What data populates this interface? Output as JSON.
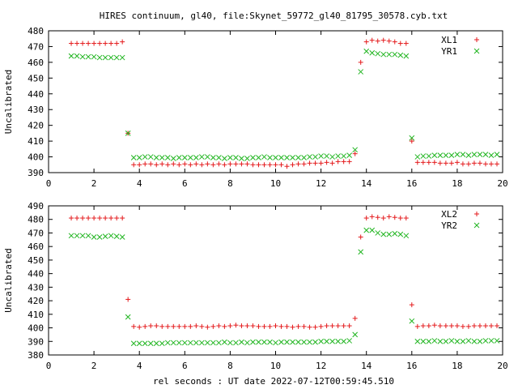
{
  "title": "HIRES continuum, gl40, file:Skynet_59772_gl40_81795_30578.cyb.txt",
  "xlabel": "rel seconds : UT date 2022-07-12T00:59:45.510",
  "colors": {
    "red": "#e41a1c",
    "green": "#21b521"
  },
  "chart_data": [
    {
      "type": "scatter",
      "ylabel": "Uncalibrated",
      "xlim": [
        0,
        20
      ],
      "ylim": [
        390,
        480
      ],
      "xticks": [
        "0",
        "2",
        "4",
        "6",
        "8",
        "10",
        "12",
        "14",
        "16",
        "18",
        "20"
      ],
      "yticks": [
        "390",
        "400",
        "410",
        "420",
        "430",
        "440",
        "450",
        "460",
        "470",
        "480"
      ],
      "legend_position": "top-right",
      "grid": false,
      "series": [
        {
          "name": "XL1",
          "marker": "plus",
          "color": "#e41a1c",
          "x": [
            1.0,
            1.25,
            1.5,
            1.75,
            2.0,
            2.25,
            2.5,
            2.75,
            3.0,
            3.25,
            3.5,
            3.75,
            4.0,
            4.25,
            4.5,
            4.75,
            5.0,
            5.25,
            5.5,
            5.75,
            6.0,
            6.25,
            6.5,
            6.75,
            7.0,
            7.25,
            7.5,
            7.75,
            8.0,
            8.25,
            8.5,
            8.75,
            9.0,
            9.25,
            9.5,
            9.75,
            10.0,
            10.25,
            10.5,
            10.75,
            11.0,
            11.25,
            11.5,
            11.75,
            12.0,
            12.25,
            12.5,
            12.75,
            13.0,
            13.25,
            13.5,
            13.75,
            14.0,
            14.25,
            14.5,
            14.75,
            15.0,
            15.25,
            15.5,
            15.75,
            16.0,
            16.25,
            16.5,
            16.75,
            17.0,
            17.25,
            17.5,
            17.75,
            18.0,
            18.25,
            18.5,
            18.75,
            19.0,
            19.25,
            19.5,
            19.75
          ],
          "y": [
            472,
            472,
            472,
            472,
            472,
            472,
            472,
            472,
            472,
            473,
            415,
            395,
            395,
            395.5,
            395.5,
            395,
            395.5,
            395,
            395.5,
            395,
            395.5,
            395,
            395.5,
            395,
            395.5,
            395,
            395.5,
            395,
            395.5,
            395.5,
            395.5,
            395.5,
            395,
            395,
            395,
            395,
            395,
            395,
            394,
            395,
            395.5,
            395.5,
            396,
            396,
            396,
            396.5,
            396,
            397,
            397,
            397,
            402,
            460,
            473,
            474,
            473.5,
            474,
            473.5,
            473,
            472,
            472,
            410,
            396.5,
            396.5,
            396.5,
            396.5,
            396,
            396,
            396,
            396.5,
            395.5,
            395.5,
            396,
            396,
            395.5,
            395.5,
            395.5
          ]
        },
        {
          "name": "YR1",
          "marker": "cross",
          "color": "#21b521",
          "x": [
            1.0,
            1.25,
            1.5,
            1.75,
            2.0,
            2.25,
            2.5,
            2.75,
            3.0,
            3.25,
            3.5,
            3.75,
            4.0,
            4.25,
            4.5,
            4.75,
            5.0,
            5.25,
            5.5,
            5.75,
            6.0,
            6.25,
            6.5,
            6.75,
            7.0,
            7.25,
            7.5,
            7.75,
            8.0,
            8.25,
            8.5,
            8.75,
            9.0,
            9.25,
            9.5,
            9.75,
            10.0,
            10.25,
            10.5,
            10.75,
            11.0,
            11.25,
            11.5,
            11.75,
            12.0,
            12.25,
            12.5,
            12.75,
            13.0,
            13.25,
            13.5,
            13.75,
            14.0,
            14.25,
            14.5,
            14.75,
            15.0,
            15.25,
            15.5,
            15.75,
            16.0,
            16.25,
            16.5,
            16.75,
            17.0,
            17.25,
            17.5,
            17.75,
            18.0,
            18.25,
            18.5,
            18.75,
            19.0,
            19.25,
            19.5,
            19.75
          ],
          "y": [
            464,
            464,
            463.5,
            463.5,
            463.5,
            463,
            463,
            463,
            463,
            463,
            415,
            399.5,
            399.5,
            400,
            400,
            399.5,
            399.5,
            399.5,
            399,
            399.5,
            399.5,
            399.5,
            399.5,
            400,
            400,
            399.5,
            399.5,
            399,
            399.5,
            399.5,
            399,
            399,
            399.5,
            399.5,
            400,
            399.5,
            399.5,
            399.5,
            399.5,
            399.5,
            399.5,
            399.5,
            400,
            400,
            400.5,
            400.5,
            400,
            400.5,
            400.5,
            401,
            404.5,
            454,
            467,
            466,
            465.5,
            465,
            465,
            465,
            464.5,
            464,
            412,
            400,
            400.5,
            400.5,
            401,
            401,
            401,
            401,
            401.5,
            401.5,
            401,
            401.5,
            401.5,
            401.5,
            401,
            401.5
          ]
        }
      ]
    },
    {
      "type": "scatter",
      "ylabel": "Uncalibrated",
      "xlim": [
        0,
        20
      ],
      "ylim": [
        380,
        490
      ],
      "xticks": [
        "0",
        "2",
        "4",
        "6",
        "8",
        "10",
        "12",
        "14",
        "16",
        "18",
        "20"
      ],
      "yticks": [
        "380",
        "390",
        "400",
        "410",
        "420",
        "430",
        "440",
        "450",
        "460",
        "470",
        "480",
        "490"
      ],
      "legend_position": "top-right",
      "grid": false,
      "series": [
        {
          "name": "XL2",
          "marker": "plus",
          "color": "#e41a1c",
          "x": [
            1.0,
            1.25,
            1.5,
            1.75,
            2.0,
            2.25,
            2.5,
            2.75,
            3.0,
            3.25,
            3.5,
            3.75,
            4.0,
            4.25,
            4.5,
            4.75,
            5.0,
            5.25,
            5.5,
            5.75,
            6.0,
            6.25,
            6.5,
            6.75,
            7.0,
            7.25,
            7.5,
            7.75,
            8.0,
            8.25,
            8.5,
            8.75,
            9.0,
            9.25,
            9.5,
            9.75,
            10.0,
            10.25,
            10.5,
            10.75,
            11.0,
            11.25,
            11.5,
            11.75,
            12.0,
            12.25,
            12.5,
            12.75,
            13.0,
            13.25,
            13.5,
            13.75,
            14.0,
            14.25,
            14.5,
            14.75,
            15.0,
            15.25,
            15.5,
            15.75,
            16.0,
            16.25,
            16.5,
            16.75,
            17.0,
            17.25,
            17.5,
            17.75,
            18.0,
            18.25,
            18.5,
            18.75,
            19.0,
            19.25,
            19.5,
            19.75
          ],
          "y": [
            481,
            481,
            481,
            481,
            481,
            481,
            481,
            481,
            481,
            481,
            421,
            401,
            400.5,
            401,
            401.5,
            401.5,
            401,
            401,
            401,
            401,
            401,
            401,
            401.5,
            401,
            400.5,
            401,
            401.5,
            401,
            401.5,
            402,
            401.5,
            401.5,
            401.5,
            401,
            401,
            401,
            401.5,
            401,
            401,
            400.5,
            401,
            401,
            400.5,
            400.5,
            401,
            401.5,
            401.5,
            401.5,
            401.5,
            401.5,
            407,
            467,
            481,
            482,
            481.5,
            481,
            482,
            481.5,
            481,
            481,
            417,
            401,
            401.5,
            401.5,
            402,
            401.5,
            401.5,
            401.5,
            401.5,
            401,
            401,
            401.5,
            401.5,
            401.5,
            401.5,
            401.5
          ]
        },
        {
          "name": "YR2",
          "marker": "cross",
          "color": "#21b521",
          "x": [
            1.0,
            1.25,
            1.5,
            1.75,
            2.0,
            2.25,
            2.5,
            2.75,
            3.0,
            3.25,
            3.5,
            3.75,
            4.0,
            4.25,
            4.5,
            4.75,
            5.0,
            5.25,
            5.5,
            5.75,
            6.0,
            6.25,
            6.5,
            6.75,
            7.0,
            7.25,
            7.5,
            7.75,
            8.0,
            8.25,
            8.5,
            8.75,
            9.0,
            9.25,
            9.5,
            9.75,
            10.0,
            10.25,
            10.5,
            10.75,
            11.0,
            11.25,
            11.5,
            11.75,
            12.0,
            12.25,
            12.5,
            12.75,
            13.0,
            13.25,
            13.5,
            13.75,
            14.0,
            14.25,
            14.5,
            14.75,
            15.0,
            15.25,
            15.5,
            15.75,
            16.0,
            16.25,
            16.5,
            16.75,
            17.0,
            17.25,
            17.5,
            17.75,
            18.0,
            18.25,
            18.5,
            18.75,
            19.0,
            19.25,
            19.5,
            19.75
          ],
          "y": [
            468,
            468,
            468,
            468,
            467,
            467,
            467.5,
            468,
            467.5,
            467,
            408,
            388.5,
            388.5,
            388.5,
            388.5,
            388.5,
            388.5,
            389,
            389,
            389,
            389,
            389,
            389,
            389,
            389,
            389,
            389,
            389.5,
            389,
            389,
            389.5,
            389,
            389.5,
            389.5,
            389.5,
            389.5,
            389,
            389.5,
            389.5,
            389.5,
            389.5,
            389.5,
            389.5,
            389.5,
            390,
            390,
            390,
            390,
            390,
            390.5,
            395,
            456,
            472,
            472,
            470,
            469,
            469,
            469.5,
            469,
            468,
            405,
            390,
            390,
            390,
            390.5,
            390,
            390,
            390.5,
            390,
            390,
            390.5,
            390,
            390,
            390.5,
            390.5,
            390.5
          ]
        }
      ]
    }
  ]
}
